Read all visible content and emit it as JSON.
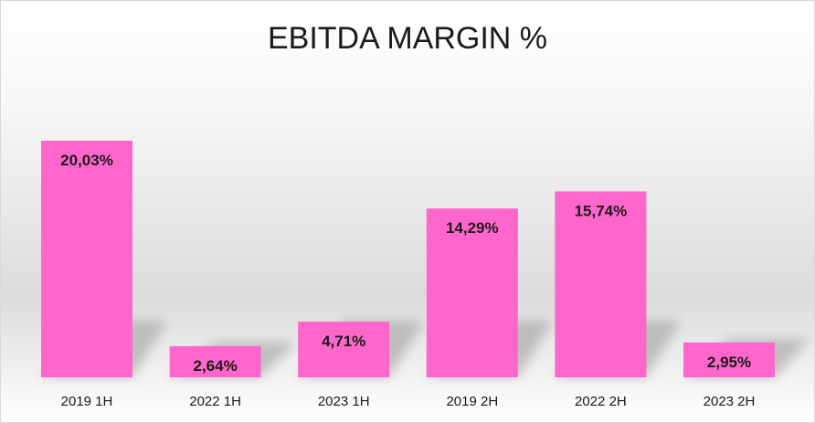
{
  "chart_data": {
    "type": "bar",
    "title": "EBITDA MARGIN %",
    "categories": [
      "2019 1H",
      "2022 1H",
      "2023 1H",
      "2019 2H",
      "2022 2H",
      "2023 2H"
    ],
    "values": [
      20.03,
      2.64,
      4.71,
      14.29,
      15.74,
      2.95
    ],
    "data_labels": [
      "20,03%",
      "2,64%",
      "4,71%",
      "14,29%",
      "15,74%",
      "2,95%"
    ],
    "xlabel": "",
    "ylabel": "",
    "ylim": [
      0,
      20.03
    ],
    "grid": false,
    "legend": "none",
    "colors": {
      "bar": "#ff66cc",
      "shadow": "#9a9a9a",
      "label": "#1a1a1a"
    }
  }
}
